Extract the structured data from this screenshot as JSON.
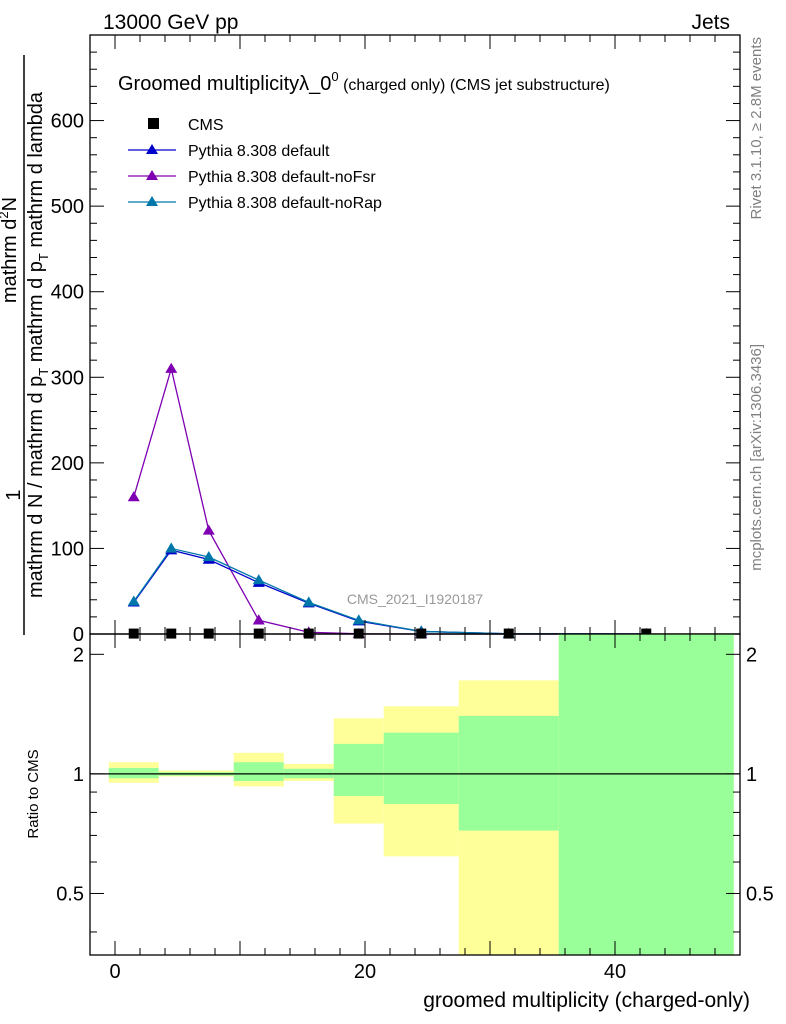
{
  "header": {
    "left": "13000 GeV pp",
    "right": "Jets"
  },
  "side_labels": {
    "rivet": "Rivet 3.1.10, ≥ 2.8M events",
    "mcplots": "mcplots.cern.ch [arXiv:1306.3436]"
  },
  "colors": {
    "cms": "#000000",
    "default": "#0000cc",
    "noFsr": "#7f00b2",
    "noRap": "#0077aa",
    "band_green": "#99ff99",
    "band_yellow": "#ffff99",
    "watermark": "#999999"
  },
  "chart_data": [
    {
      "type": "line",
      "title_main": "Groomed multiplicityλ_0",
      "title_sup": "0",
      "title_rest": " (charged only) (CMS jet substructure)",
      "ylabel_num": "1",
      "ylabel_den": "mathrm d N / mathrm d p",
      "ylabel_den_sub": "T",
      "ylabel_rest": " mathrm d p",
      "ylabel_rest_sub": "T",
      "ylabel_tail": " mathrm d lambda",
      "ylabel_top": "mathrm d",
      "ylabel_top_sup": "2",
      "ylabel_top_tail": "N",
      "watermark": "CMS_2021_I1920187",
      "xlim": [
        -2,
        50
      ],
      "ylim": [
        0,
        700
      ],
      "y_ticks": [
        0,
        100,
        200,
        300,
        400,
        500,
        600
      ],
      "y_tick_labels": [
        "0",
        "100",
        "200",
        "300",
        "400",
        "500",
        "600"
      ],
      "legend": [
        "CMS",
        "Pythia 8.308 default",
        "Pythia 8.308 default-noFsr",
        "Pythia 8.308 default-noRap"
      ],
      "series": [
        {
          "name": "CMS",
          "color_key": "cms",
          "marker": "square",
          "x": [
            1.5,
            4.5,
            7.5,
            11.5,
            15.5,
            19.5,
            24.5,
            31.5,
            42.5
          ],
          "values": [
            0.5,
            0.5,
            0.5,
            0.5,
            0.5,
            0.5,
            0.5,
            0.5,
            0.5
          ]
        },
        {
          "name": "Pythia 8.308 default",
          "color_key": "default",
          "marker": "triangle",
          "x": [
            1.5,
            4.5,
            7.5,
            11.5,
            15.5,
            19.5,
            24.5,
            31.5,
            42.5
          ],
          "values": [
            37,
            98,
            87,
            60,
            36,
            15,
            3,
            0.3,
            0.02
          ]
        },
        {
          "name": "Pythia 8.308 default-noFsr",
          "color_key": "noFsr",
          "marker": "triangle",
          "x": [
            1.5,
            4.5,
            7.5,
            11.5,
            15.5,
            19.5,
            24.5,
            31.5,
            42.5
          ],
          "values": [
            160,
            310,
            121,
            16,
            2,
            0.2,
            0,
            0,
            0
          ]
        },
        {
          "name": "Pythia 8.308 default-noRap",
          "color_key": "noRap",
          "marker": "triangle",
          "x": [
            1.5,
            4.5,
            7.5,
            11.5,
            15.5,
            19.5,
            24.5,
            31.5,
            42.5
          ],
          "values": [
            38,
            100,
            90,
            63,
            37,
            16,
            3,
            0.3,
            0.02
          ]
        }
      ]
    },
    {
      "type": "area",
      "ylabel": "Ratio to CMS",
      "xlabel": "groomed multiplicity (charged-only)",
      "xlim": [
        -2,
        50
      ],
      "ylim": [
        0.35,
        2.25
      ],
      "x_ticks": [
        0,
        20,
        40
      ],
      "x_tick_labels": [
        "0",
        "20",
        "40"
      ],
      "y_ticks": [
        0.5,
        1,
        2
      ],
      "y_tick_labels": [
        "0.5",
        "1",
        "2"
      ],
      "bins": [
        {
          "lo": -0.5,
          "hi": 3.5,
          "yellow": [
            0.95,
            1.07
          ],
          "green": [
            0.975,
            1.035
          ]
        },
        {
          "lo": 3.5,
          "hi": 9.5,
          "yellow": [
            0.985,
            1.02
          ],
          "green": [
            0.99,
            1.01
          ]
        },
        {
          "lo": 9.5,
          "hi": 13.5,
          "yellow": [
            0.93,
            1.13
          ],
          "green": [
            0.96,
            1.07
          ]
        },
        {
          "lo": 13.5,
          "hi": 17.5,
          "yellow": [
            0.96,
            1.06
          ],
          "green": [
            0.975,
            1.03
          ]
        },
        {
          "lo": 17.5,
          "hi": 21.5,
          "yellow": [
            0.75,
            1.38
          ],
          "green": [
            0.88,
            1.19
          ]
        },
        {
          "lo": 21.5,
          "hi": 27.5,
          "yellow": [
            0.62,
            1.48
          ],
          "green": [
            0.84,
            1.27
          ]
        },
        {
          "lo": 27.5,
          "hi": 35.5,
          "yellow": [
            0.35,
            1.72
          ],
          "green": [
            0.72,
            1.4
          ]
        },
        {
          "lo": 35.5,
          "hi": 49.5,
          "yellow": [
            0.35,
            2.25
          ],
          "green": [
            0.35,
            2.25
          ]
        }
      ]
    }
  ]
}
